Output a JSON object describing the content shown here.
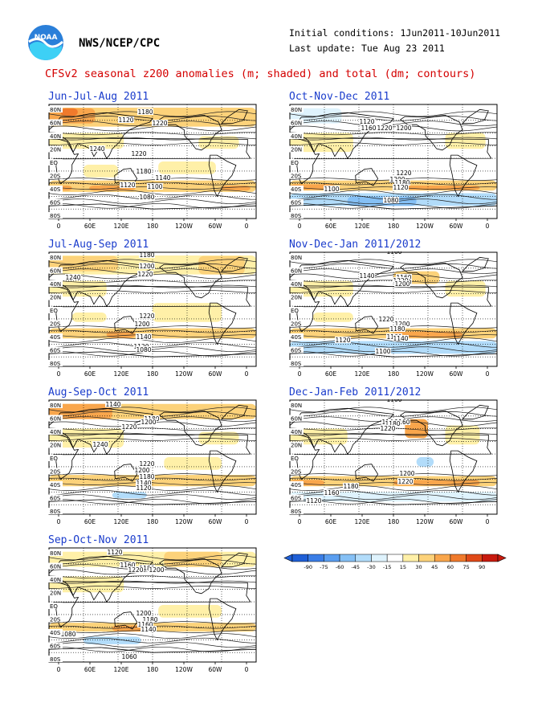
{
  "header": {
    "agency": "NWS/NCEP/CPC",
    "initial_conditions": "Initial conditions: 1Jun2011-10Jun2011",
    "last_update": "Last update: Tue Aug 23 2011",
    "title": "CFSv2 seasonal z200 anomalies (m; shaded) and total (dm; contours)"
  },
  "axes": {
    "lat_labels": [
      "80N",
      "60N",
      "40N",
      "20N",
      "EQ",
      "20S",
      "40S",
      "60S",
      "80S"
    ],
    "lon_labels": [
      "0",
      "60E",
      "120E",
      "180",
      "120W",
      "60W",
      "0"
    ]
  },
  "panels": [
    {
      "title": "Jun-Jul-Aug 2011",
      "contour_labels": [
        "1180",
        "1120",
        "1220",
        "1240",
        "1220",
        "1180",
        "1140",
        "1120",
        "1100",
        "1080"
      ]
    },
    {
      "title": "Jul-Aug-Sep 2011",
      "contour_labels": [
        "1180",
        "1200",
        "1220",
        "1240",
        "1220",
        "1200",
        "1140",
        "1120",
        "1080"
      ]
    },
    {
      "title": "Aug-Sep-Oct 2011",
      "contour_labels": [
        "1140",
        "1180",
        "1200",
        "1220",
        "1240",
        "1220",
        "1200",
        "1180",
        "1140",
        "1120"
      ]
    },
    {
      "title": "Sep-Oct-Nov 2011",
      "contour_labels": [
        "1120",
        "1160",
        "1180",
        "1220",
        "1200",
        "1200",
        "1180",
        "1160",
        "1140",
        "1080",
        "1060"
      ]
    },
    {
      "title": "Oct-Nov-Dec 2011",
      "contour_labels": [
        "1120",
        "1160",
        "1220",
        "1200",
        "1220",
        "1200",
        "1180",
        "1120",
        "1100",
        "1080"
      ]
    },
    {
      "title": "Nov-Dec-Jan 2011/2012",
      "contour_labels": [
        "1100",
        "1140",
        "1160",
        "1180",
        "1220",
        "1200",
        "1220",
        "1200",
        "1180",
        "1160",
        "1140",
        "1120",
        "1100"
      ]
    },
    {
      "title": "Dec-Jan-Feb 2011/2012",
      "contour_labels": [
        "1100",
        "1140",
        "1160",
        "1180",
        "1220",
        "1200",
        "1220",
        "1180",
        "1160",
        "1120"
      ]
    }
  ],
  "colorbar": {
    "labels": [
      "-90",
      "-75",
      "-60",
      "-45",
      "-30",
      "-15",
      "15",
      "30",
      "45",
      "60",
      "75",
      "90"
    ],
    "colors": [
      "#1f5fd6",
      "#3a7de6",
      "#5a9ef0",
      "#85c0f5",
      "#b2dcfa",
      "#dff3fd",
      "#ffffff",
      "#fff0a8",
      "#fcd27a",
      "#f9a64c",
      "#f07a2c",
      "#e04a18",
      "#c81a0e"
    ]
  }
}
